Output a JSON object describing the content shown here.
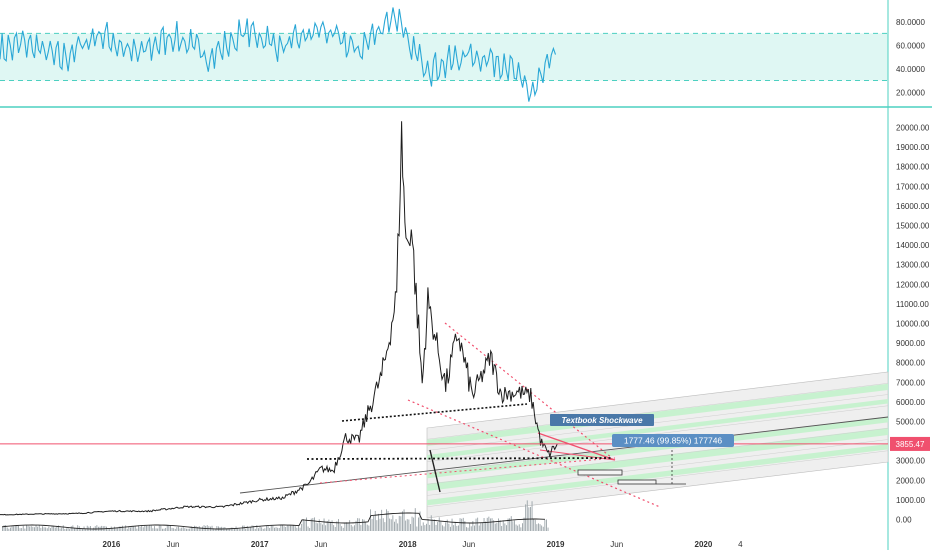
{
  "colors": {
    "price_line": "#1d1d1d",
    "rsi_line": "#2aa7d6",
    "rsi_band": "#dff7f3",
    "rsi_border": "#4dd0c1",
    "pane_divider": "#4dd0c1",
    "current_price": "#f0506e",
    "trend_dotted_red": "#f0506e",
    "trend_dotted_black": "#111111",
    "channel_fill": "#efefef",
    "channel_green": "#c7f2cf",
    "annotation_bg": "#4a78a8",
    "measure_bg": "#5b8fc4",
    "volume": "#9aa3a8"
  },
  "chart_data": [
    {
      "type": "line",
      "panel": "rsi",
      "ylim": [
        10,
        95
      ],
      "y_ticks": [
        "80.0000",
        "60.0000",
        "40.0000",
        "20.0000"
      ],
      "y_tick_values": [
        80,
        60,
        40,
        20
      ],
      "band": [
        30,
        70
      ],
      "grid": false,
      "series": [
        {
          "x": [
            "2015-04",
            "2015-06",
            "2015-09",
            "2015-12",
            "2016-03",
            "2016-06",
            "2016-09",
            "2016-12",
            "2017-03",
            "2017-06",
            "2017-09",
            "2017-12",
            "2018-01",
            "2018-03",
            "2018-06",
            "2018-09",
            "2018-11",
            "2018-12",
            "2019-01"
          ],
          "values": [
            55,
            62,
            48,
            70,
            52,
            68,
            50,
            72,
            58,
            74,
            55,
            88,
            60,
            40,
            52,
            45,
            18,
            35,
            52
          ]
        }
      ]
    },
    {
      "type": "line",
      "panel": "price",
      "ylim": [
        -500,
        20500
      ],
      "y_ticks": [
        "20000.00",
        "19000.00",
        "18000.00",
        "17000.00",
        "16000.00",
        "15000.00",
        "14000.00",
        "13000.00",
        "12000.00",
        "11000.00",
        "10000.00",
        "9000.00",
        "8000.00",
        "7000.00",
        "6000.00",
        "5000.00",
        "4000.00",
        "3000.00",
        "2000.00",
        "1000.00",
        "0.00"
      ],
      "y_tick_values": [
        20000,
        19000,
        18000,
        17000,
        16000,
        15000,
        14000,
        13000,
        12000,
        11000,
        10000,
        9000,
        8000,
        7000,
        6000,
        5000,
        4000,
        3000,
        2000,
        1000,
        0
      ],
      "x_ticks": [
        "2016",
        "Jun",
        "2017",
        "Jun",
        "2018",
        "Jun",
        "2019",
        "Jun",
        "2020",
        "4"
      ],
      "x_tick_dates": [
        "2016-01",
        "2016-06",
        "2017-01",
        "2017-06",
        "2018-01",
        "2018-06",
        "2019-01",
        "2019-06",
        "2020-01",
        "2020-04"
      ],
      "current_price_label": "3855.47",
      "current_price": 3855.47,
      "annotations": [
        "Textbook Shockwave",
        "1777.46 (99.85%) 177746"
      ],
      "series": [
        {
          "x": [
            "2015-04",
            "2015-07",
            "2015-10",
            "2016-01",
            "2016-04",
            "2016-07",
            "2016-10",
            "2017-01",
            "2017-03",
            "2017-05",
            "2017-06",
            "2017-07",
            "2017-08",
            "2017-09",
            "2017-10",
            "2017-11",
            "2017-12-05",
            "2017-12-17",
            "2017-12-28",
            "2018-01-10",
            "2018-02-06",
            "2018-02-20",
            "2018-03-05",
            "2018-04-05",
            "2018-05-05",
            "2018-06-10",
            "2018-07-25",
            "2018-08-20",
            "2018-10-01",
            "2018-11-01",
            "2018-11-25",
            "2018-12-15",
            "2019-01-05"
          ],
          "values": [
            240,
            280,
            300,
            430,
            420,
            650,
            640,
            1000,
            1100,
            1800,
            2600,
            2500,
            4200,
            4000,
            5800,
            7500,
            11500,
            19500,
            14000,
            15000,
            6900,
            11200,
            9800,
            6800,
            9500,
            6300,
            8300,
            6400,
            6500,
            6300,
            4000,
            3300,
            3855
          ]
        }
      ]
    }
  ]
}
